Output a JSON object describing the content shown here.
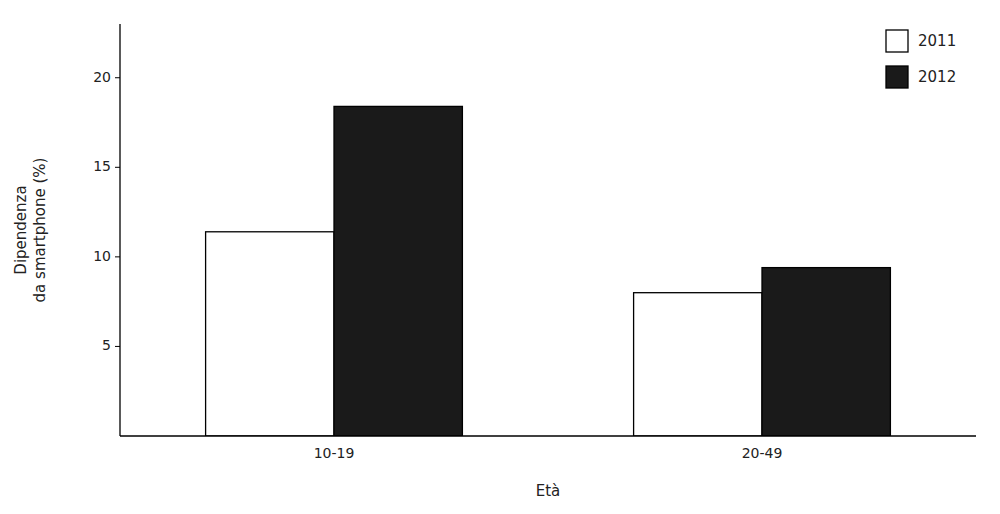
{
  "chart_data": {
    "type": "bar",
    "categories": [
      "10-19",
      "20-49"
    ],
    "series": [
      {
        "name": "2011",
        "color": "#ffffff",
        "values": [
          11.4,
          8.0
        ]
      },
      {
        "name": "2012",
        "color": "#1a1a1a",
        "values": [
          18.4,
          9.4
        ]
      }
    ],
    "xlabel": "Età",
    "ylabel": "Dipendenza\nda smartphone (%)",
    "ylim": [
      0,
      23
    ],
    "yticks": [
      5,
      10,
      15,
      20
    ],
    "grid": false,
    "legend": "upper right"
  }
}
